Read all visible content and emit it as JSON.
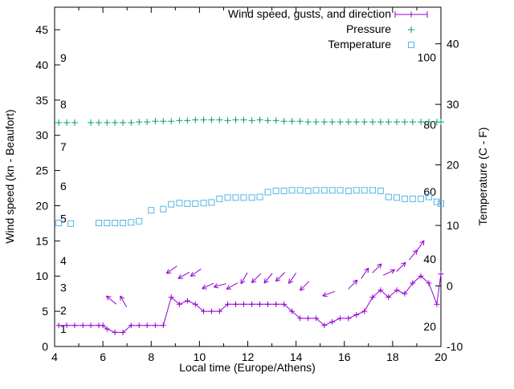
{
  "chart_data": {
    "type": "line",
    "xlabel": "Local time (Europe/Athens)",
    "ylabel_left": "Wind speed (kn - Beaufort)",
    "ylabel_right": "Temperature (C - F)",
    "x_range": [
      4,
      20
    ],
    "x_ticks": [
      4,
      6,
      8,
      10,
      12,
      14,
      16,
      18,
      20
    ],
    "y_left_range": [
      0,
      48.2
    ],
    "y_left_ticks": [
      0,
      5,
      10,
      15,
      20,
      25,
      30,
      35,
      40,
      45
    ],
    "y_right_ticks_c": [
      -10,
      0,
      10,
      20,
      30,
      40
    ],
    "beaufort_labels": [
      {
        "b": 1,
        "kn": 2.5
      },
      {
        "b": 2,
        "kn": 5.1
      },
      {
        "b": 3,
        "kn": 8.4
      },
      {
        "b": 4,
        "kn": 12.2
      },
      {
        "b": 5,
        "kn": 18.2
      },
      {
        "b": 6,
        "kn": 22.8
      },
      {
        "b": 7,
        "kn": 28.4
      },
      {
        "b": 8,
        "kn": 34.4
      },
      {
        "b": 9,
        "kn": 41.0
      }
    ],
    "fahrenheit_labels": [
      {
        "f": 100
      },
      {
        "f": 80
      },
      {
        "f": 60
      },
      {
        "f": 40
      },
      {
        "f": 20
      }
    ],
    "legend": [
      {
        "label": "Wind speed, gusts, and direction",
        "color": "#9400D3",
        "symbol": "errorbar"
      },
      {
        "label": "Pressure",
        "color": "#009E73",
        "symbol": "plus"
      },
      {
        "label": "Temperature",
        "color": "#56B4E9",
        "symbol": "square"
      }
    ],
    "series": {
      "wind": {
        "name": "Wind speed (kn)",
        "color": "#9400D3",
        "points": [
          [
            4.17,
            3
          ],
          [
            4.5,
            3
          ],
          [
            4.83,
            3
          ],
          [
            5.17,
            3
          ],
          [
            5.5,
            3
          ],
          [
            5.83,
            3
          ],
          [
            6.0,
            3
          ],
          [
            6.17,
            2.5
          ],
          [
            6.5,
            2
          ],
          [
            6.83,
            2
          ],
          [
            7.17,
            3
          ],
          [
            7.5,
            3
          ],
          [
            7.83,
            3
          ],
          [
            8.17,
            3
          ],
          [
            8.5,
            3
          ],
          [
            8.83,
            7
          ],
          [
            9.17,
            6
          ],
          [
            9.5,
            6.5
          ],
          [
            9.83,
            6
          ],
          [
            10.17,
            5
          ],
          [
            10.5,
            5
          ],
          [
            10.83,
            5
          ],
          [
            11.17,
            6
          ],
          [
            11.5,
            6
          ],
          [
            11.83,
            6
          ],
          [
            12.17,
            6
          ],
          [
            12.5,
            6
          ],
          [
            12.83,
            6
          ],
          [
            13.17,
            6
          ],
          [
            13.5,
            6
          ],
          [
            13.83,
            5
          ],
          [
            14.17,
            4
          ],
          [
            14.5,
            4
          ],
          [
            14.83,
            4
          ],
          [
            15.17,
            3
          ],
          [
            15.5,
            3.5
          ],
          [
            15.83,
            4
          ],
          [
            16.17,
            4
          ],
          [
            16.5,
            4.5
          ],
          [
            16.83,
            5
          ],
          [
            17.17,
            7
          ],
          [
            17.5,
            8
          ],
          [
            17.83,
            7
          ],
          [
            18.17,
            8
          ],
          [
            18.5,
            7.5
          ],
          [
            18.83,
            9
          ],
          [
            19.17,
            10
          ],
          [
            19.5,
            9
          ],
          [
            19.83,
            6
          ],
          [
            20.0,
            10.3
          ]
        ]
      },
      "arrows": {
        "name": "Wind direction",
        "color": "#9400D3",
        "items": [
          [
            6.35,
            6.6,
            140
          ],
          [
            6.85,
            6.4,
            120
          ],
          [
            8.85,
            10.9,
            215
          ],
          [
            9.35,
            10.1,
            210
          ],
          [
            9.85,
            10.5,
            215
          ],
          [
            10.35,
            8.6,
            205
          ],
          [
            10.85,
            8.7,
            195
          ],
          [
            11.35,
            8.6,
            210
          ],
          [
            11.85,
            9.7,
            240
          ],
          [
            12.35,
            9.7,
            225
          ],
          [
            12.85,
            9.7,
            230
          ],
          [
            13.35,
            9.9,
            225
          ],
          [
            13.85,
            9.7,
            235
          ],
          [
            14.35,
            8.6,
            225
          ],
          [
            15.35,
            7.5,
            200
          ],
          [
            16.35,
            8.8,
            45
          ],
          [
            16.85,
            10.4,
            55
          ],
          [
            17.35,
            11.1,
            45
          ],
          [
            17.85,
            10.5,
            25
          ],
          [
            18.35,
            11.3,
            45
          ],
          [
            18.85,
            13.0,
            50
          ],
          [
            19.15,
            14.3,
            55
          ]
        ]
      },
      "pressure": {
        "name": "Pressure",
        "color": "#009E73",
        "points_left_units": [
          [
            4.17,
            31.8
          ],
          [
            4.5,
            31.8
          ],
          [
            4.83,
            31.8
          ],
          [
            5.5,
            31.8
          ],
          [
            5.83,
            31.8
          ],
          [
            6.17,
            31.8
          ],
          [
            6.5,
            31.8
          ],
          [
            6.83,
            31.8
          ],
          [
            7.17,
            31.8
          ],
          [
            7.5,
            31.9
          ],
          [
            7.83,
            31.9
          ],
          [
            8.17,
            32.0
          ],
          [
            8.5,
            32.0
          ],
          [
            8.83,
            32.0
          ],
          [
            9.17,
            32.1
          ],
          [
            9.5,
            32.1
          ],
          [
            9.83,
            32.2
          ],
          [
            10.17,
            32.2
          ],
          [
            10.5,
            32.2
          ],
          [
            10.83,
            32.2
          ],
          [
            11.17,
            32.1
          ],
          [
            11.5,
            32.2
          ],
          [
            11.83,
            32.2
          ],
          [
            12.17,
            32.1
          ],
          [
            12.5,
            32.2
          ],
          [
            12.83,
            32.1
          ],
          [
            13.17,
            32.1
          ],
          [
            13.5,
            32.0
          ],
          [
            13.83,
            32.0
          ],
          [
            14.17,
            32.0
          ],
          [
            14.5,
            31.9
          ],
          [
            14.83,
            31.9
          ],
          [
            15.17,
            31.9
          ],
          [
            15.5,
            31.9
          ],
          [
            15.83,
            31.9
          ],
          [
            16.17,
            31.9
          ],
          [
            16.5,
            31.9
          ],
          [
            16.83,
            31.9
          ],
          [
            17.17,
            31.9
          ],
          [
            17.5,
            31.9
          ],
          [
            17.83,
            31.9
          ],
          [
            18.17,
            31.9
          ],
          [
            18.5,
            31.9
          ],
          [
            18.83,
            31.9
          ],
          [
            19.17,
            31.9
          ],
          [
            19.5,
            31.9
          ],
          [
            19.83,
            31.9
          ],
          [
            20.0,
            31.9
          ]
        ]
      },
      "temperature": {
        "name": "Temperature (C)",
        "color": "#56B4E9",
        "points_c": [
          [
            4.17,
            10.4
          ],
          [
            4.67,
            10.3
          ],
          [
            5.83,
            10.4
          ],
          [
            6.17,
            10.4
          ],
          [
            6.5,
            10.4
          ],
          [
            6.83,
            10.4
          ],
          [
            7.17,
            10.5
          ],
          [
            7.5,
            10.7
          ],
          [
            8.0,
            12.5
          ],
          [
            8.5,
            12.7
          ],
          [
            8.83,
            13.5
          ],
          [
            9.17,
            13.7
          ],
          [
            9.5,
            13.6
          ],
          [
            9.83,
            13.6
          ],
          [
            10.17,
            13.7
          ],
          [
            10.5,
            13.8
          ],
          [
            10.83,
            14.4
          ],
          [
            11.17,
            14.6
          ],
          [
            11.5,
            14.6
          ],
          [
            11.83,
            14.6
          ],
          [
            12.17,
            14.6
          ],
          [
            12.5,
            14.7
          ],
          [
            12.83,
            15.5
          ],
          [
            13.17,
            15.7
          ],
          [
            13.5,
            15.7
          ],
          [
            13.83,
            15.8
          ],
          [
            14.17,
            15.8
          ],
          [
            14.5,
            15.7
          ],
          [
            14.83,
            15.8
          ],
          [
            15.17,
            15.8
          ],
          [
            15.5,
            15.8
          ],
          [
            15.83,
            15.8
          ],
          [
            16.17,
            15.7
          ],
          [
            16.5,
            15.8
          ],
          [
            16.83,
            15.8
          ],
          [
            17.17,
            15.8
          ],
          [
            17.5,
            15.7
          ],
          [
            17.83,
            14.7
          ],
          [
            18.17,
            14.6
          ],
          [
            18.5,
            14.4
          ],
          [
            18.83,
            14.4
          ],
          [
            19.17,
            14.4
          ],
          [
            19.5,
            14.7
          ],
          [
            19.83,
            13.9
          ],
          [
            20.0,
            13.6
          ]
        ]
      }
    }
  }
}
